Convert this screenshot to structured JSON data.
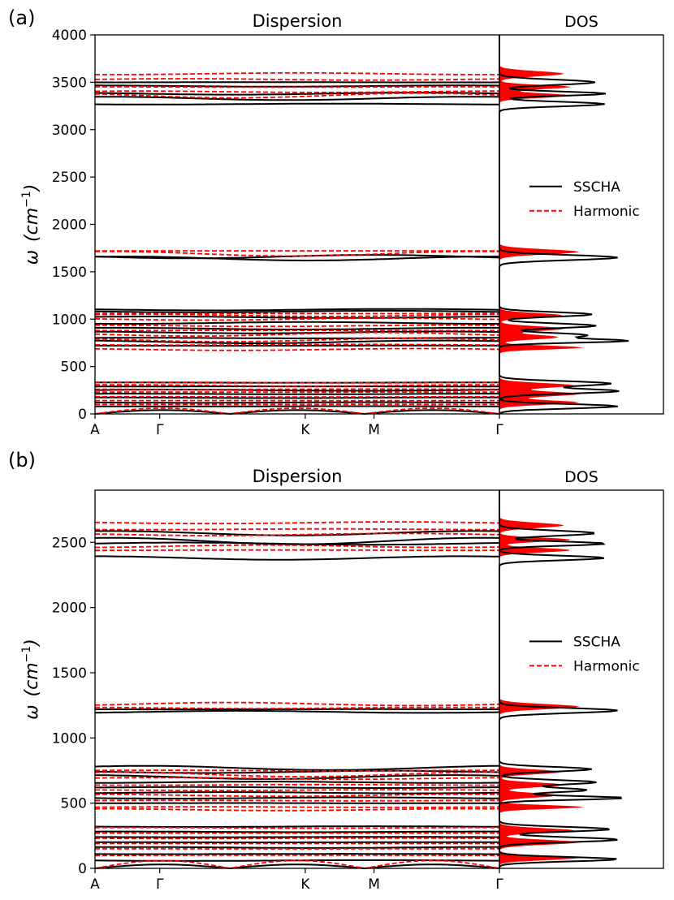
{
  "chart_data": [
    {
      "panel_label": "(a)",
      "type": "line",
      "title": "Dispersion",
      "dos_title": "DOS",
      "xlabel": "",
      "ylabel_symbol": "ω",
      "ylabel_unit": "(cm",
      "ylabel_exp": "−1",
      "ylabel_close": ")",
      "ylim": [
        0,
        4000
      ],
      "yticks": [
        "0",
        "500",
        "1000",
        "1500",
        "2000",
        "2500",
        "3000",
        "3500",
        "4000"
      ],
      "ytick_values": [
        0,
        500,
        1000,
        1500,
        2000,
        2500,
        3000,
        3500,
        4000
      ],
      "xticks": [
        "A",
        "Γ",
        "K",
        "M",
        "Γ"
      ],
      "xtick_values": [
        0,
        0.16,
        0.52,
        0.69,
        1.0
      ],
      "legend": [
        "SSCHA",
        "Harmonic"
      ],
      "legend_position": "center-right of DOS panel",
      "series": [
        {
          "name": "SSCHA",
          "style": "solid",
          "color": "#000000",
          "bands": [
            3270,
            3330,
            3380,
            3460,
            3500,
            1640,
            1660,
            1100,
            1080,
            1020,
            960,
            900,
            860,
            800,
            760,
            720,
            330,
            290,
            250,
            210,
            170,
            120,
            80,
            40
          ]
        },
        {
          "name": "Harmonic",
          "style": "dashed",
          "color": "#ff0000",
          "bands": [
            3360,
            3400,
            3450,
            3530,
            3590,
            1690,
            1720,
            1060,
            1040,
            1000,
            930,
            880,
            840,
            780,
            730,
            680,
            330,
            300,
            260,
            230,
            180,
            140,
            100,
            60
          ]
        }
      ],
      "dos_peaks": {
        "SSCHA": [
          3270,
          3380,
          3500,
          1650,
          1050,
          930,
          830,
          770,
          320,
          240,
          80
        ],
        "Harmonic": [
          3360,
          3450,
          3590,
          1710,
          1040,
          900,
          810,
          700,
          300,
          210,
          120
        ]
      }
    },
    {
      "panel_label": "(b)",
      "type": "line",
      "title": "Dispersion",
      "dos_title": "DOS",
      "xlabel": "",
      "ylabel_symbol": "ω",
      "ylabel_unit": "(cm",
      "ylabel_exp": "−1",
      "ylabel_close": ")",
      "ylim": [
        0,
        2900
      ],
      "yticks": [
        "0",
        "500",
        "1000",
        "1500",
        "2000",
        "2500"
      ],
      "ytick_values": [
        0,
        500,
        1000,
        1500,
        2000,
        2500
      ],
      "xticks": [
        "A",
        "Γ",
        "K",
        "M",
        "Γ"
      ],
      "xtick_values": [
        0,
        0.16,
        0.52,
        0.69,
        1.0
      ],
      "legend": [
        "SSCHA",
        "Harmonic"
      ],
      "legend_position": "center-right of DOS panel",
      "series": [
        {
          "name": "SSCHA",
          "style": "solid",
          "color": "#000000",
          "bands": [
            2380,
            2490,
            2510,
            2570,
            1200,
            1220,
            770,
            740,
            700,
            660,
            620,
            580,
            540,
            500,
            320,
            280,
            240,
            200,
            160,
            110,
            60,
            30
          ]
        },
        {
          "name": "Harmonic",
          "style": "dashed",
          "color": "#ff0000",
          "bands": [
            2440,
            2470,
            2560,
            2600,
            2650,
            1230,
            1260,
            750,
            720,
            690,
            640,
            600,
            560,
            520,
            470,
            450,
            310,
            270,
            230,
            190,
            150,
            100,
            60
          ]
        }
      ],
      "dos_peaks": {
        "SSCHA": [
          2380,
          2490,
          2570,
          1210,
          760,
          660,
          600,
          540,
          300,
          220,
          70
        ],
        "Harmonic": [
          2440,
          2520,
          2630,
          1240,
          740,
          640,
          560,
          470,
          290,
          200,
          80
        ]
      }
    }
  ]
}
